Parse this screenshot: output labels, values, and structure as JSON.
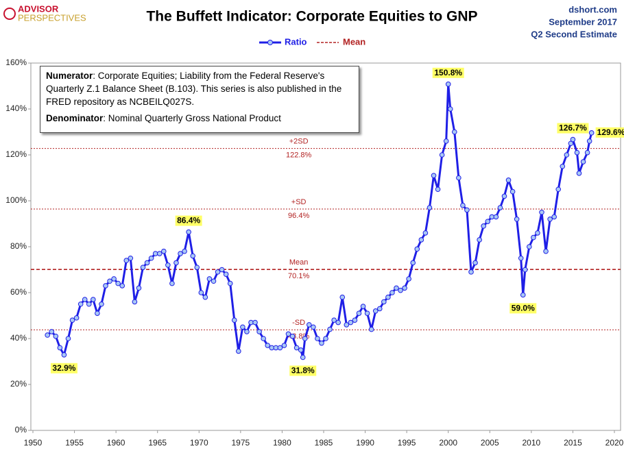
{
  "chart_data": {
    "type": "line",
    "title": "The Buffett Indicator: Corporate Equities to GNP",
    "brand": [
      "ADVISOR",
      "PERSPECTIVES"
    ],
    "source_lines": [
      "dshort.com",
      "September 2017",
      "Q2 Second Estimate"
    ],
    "note": [
      {
        "bold": "Numerator",
        "text": ": Corporate Equities; Liability from the Federal Reserve's Quarterly Z.1 Balance Sheet (B.103). This series is also published in the FRED repository  as NCBEILQ027S."
      },
      {
        "bold": "Denominator",
        "text": ": Nominal Quarterly Gross National Product"
      }
    ],
    "x": [
      1951.75,
      1952.25,
      1952.75,
      1953.25,
      1953.75,
      1954.25,
      1954.75,
      1955.25,
      1955.75,
      1956.25,
      1956.75,
      1957.25,
      1957.75,
      1958.25,
      1958.75,
      1959.25,
      1959.75,
      1960.25,
      1960.75,
      1961.25,
      1961.75,
      1962.25,
      1962.75,
      1963.25,
      1963.75,
      1964.25,
      1964.75,
      1965.25,
      1965.75,
      1966.25,
      1966.75,
      1967.25,
      1967.75,
      1968.25,
      1968.75,
      1969.25,
      1969.75,
      1970.25,
      1970.75,
      1971.25,
      1971.75,
      1972.25,
      1972.75,
      1973.25,
      1973.75,
      1974.25,
      1974.75,
      1975.25,
      1975.75,
      1976.25,
      1976.75,
      1977.25,
      1977.75,
      1978.25,
      1978.75,
      1979.25,
      1979.75,
      1980.25,
      1980.75,
      1981.25,
      1981.75,
      1982.25,
      1982.5,
      1982.75,
      1983.25,
      1983.75,
      1984.25,
      1984.75,
      1985.25,
      1985.75,
      1986.25,
      1986.75,
      1987.25,
      1987.75,
      1988.25,
      1988.75,
      1989.25,
      1989.75,
      1990.25,
      1990.75,
      1991.25,
      1991.75,
      1992.25,
      1992.75,
      1993.25,
      1993.75,
      1994.25,
      1994.75,
      1995.25,
      1995.75,
      1996.25,
      1996.75,
      1997.25,
      1997.75,
      1998.25,
      1998.75,
      1999.25,
      1999.75,
      2000.0,
      2000.25,
      2000.75,
      2001.25,
      2001.75,
      2002.25,
      2002.75,
      2003.25,
      2003.75,
      2004.25,
      2004.75,
      2005.25,
      2005.75,
      2006.25,
      2006.75,
      2007.25,
      2007.75,
      2008.25,
      2008.75,
      2009.0,
      2009.25,
      2009.75,
      2010.25,
      2010.75,
      2011.25,
      2011.75,
      2012.25,
      2012.75,
      2013.25,
      2013.75,
      2014.25,
      2014.75,
      2015.0,
      2015.5,
      2015.75,
      2016.25,
      2016.75,
      2017.0,
      2017.25
    ],
    "series": [
      {
        "name": "Ratio",
        "color": "#1f1fe6",
        "marker_fill": "#a9c8f5",
        "values": [
          41.5,
          43,
          41,
          36,
          32.9,
          40,
          48,
          49,
          55,
          57,
          55,
          57,
          51,
          55,
          63,
          65,
          66,
          64,
          63,
          74,
          75,
          56,
          62,
          71,
          73,
          75,
          77,
          77,
          78,
          72,
          64,
          73,
          77,
          78,
          86.4,
          76,
          71,
          60,
          58,
          66,
          65,
          69,
          70,
          68,
          64,
          48,
          34.5,
          45,
          43,
          47,
          47,
          43,
          40,
          37,
          36,
          36,
          36,
          37,
          42,
          41,
          36,
          35,
          31.8,
          40,
          46,
          45,
          40,
          38,
          40,
          44,
          48,
          47,
          58,
          46,
          47,
          48,
          51,
          54,
          51,
          44,
          52,
          53,
          56,
          58,
          60,
          62,
          61,
          62,
          66,
          73,
          79,
          83,
          86,
          97,
          111,
          105,
          120,
          126,
          150.8,
          140,
          130,
          110,
          98,
          96,
          69,
          73,
          83,
          89,
          91,
          93,
          93,
          97,
          102,
          109,
          104,
          92,
          75,
          59.0,
          70,
          80,
          84,
          86,
          95,
          78,
          92,
          93,
          105,
          115,
          120,
          125,
          126.7,
          121,
          112,
          117,
          121,
          126,
          129.6
        ],
        "value_labels": [
          null,
          null,
          null,
          null,
          "32.9%",
          null,
          null,
          null,
          null,
          null,
          null,
          null,
          null,
          null,
          null,
          null,
          null,
          null,
          null,
          null,
          null,
          null,
          null,
          null,
          null,
          null,
          null,
          null,
          null,
          null,
          null,
          null,
          null,
          null,
          "86.4%",
          null,
          null,
          null,
          null,
          null,
          null,
          null,
          null,
          null,
          null,
          null,
          null,
          null,
          null,
          null,
          null,
          null,
          null,
          null,
          null,
          null,
          null,
          null,
          null,
          null,
          null,
          null,
          "31.8%",
          null,
          null,
          null,
          null,
          null,
          null,
          null,
          null,
          null,
          null,
          null,
          null,
          null,
          null,
          null,
          null,
          null,
          null,
          null,
          null,
          null,
          null,
          null,
          null,
          null,
          null,
          null,
          null,
          null,
          null,
          null,
          null,
          null,
          null,
          null,
          "150.8%",
          null,
          null,
          null,
          null,
          null,
          null,
          null,
          null,
          null,
          null,
          null,
          null,
          null,
          null,
          null,
          null,
          null,
          null,
          "59.0%",
          null,
          null,
          null,
          null,
          null,
          null,
          null,
          null,
          null,
          null,
          null,
          null,
          "126.7%",
          null,
          null,
          null,
          null,
          null,
          "129.6%"
        ]
      }
    ],
    "reference_lines": [
      {
        "name": "+2SD",
        "value": 122.8,
        "label": "122.8%",
        "color": "#b22222",
        "style": "dotted"
      },
      {
        "name": "+SD",
        "value": 96.4,
        "label": "96.4%",
        "color": "#b22222",
        "style": "dotted"
      },
      {
        "name": "Mean",
        "value": 70.1,
        "label": "70.1%",
        "color": "#b22222",
        "style": "dashed"
      },
      {
        "name": "-SD",
        "value": 43.8,
        "label": "43.8%",
        "color": "#b22222",
        "style": "dotted"
      }
    ],
    "xlim": [
      1950,
      2020
    ],
    "ylim": [
      0,
      160
    ],
    "xticks": [
      1950,
      1955,
      1960,
      1965,
      1970,
      1975,
      1980,
      1985,
      1990,
      1995,
      2000,
      2005,
      2010,
      2015,
      2020
    ],
    "yticks": [
      {
        "value": 0,
        "label": "0%"
      },
      {
        "value": 20,
        "label": "20%"
      },
      {
        "value": 40,
        "label": "40%"
      },
      {
        "value": 60,
        "label": "60%"
      },
      {
        "value": 80,
        "label": "80%"
      },
      {
        "value": 100,
        "label": "100%"
      },
      {
        "value": 120,
        "label": "120%"
      },
      {
        "value": 140,
        "label": "140%"
      },
      {
        "value": 160,
        "label": "160%"
      }
    ],
    "grid": false
  }
}
